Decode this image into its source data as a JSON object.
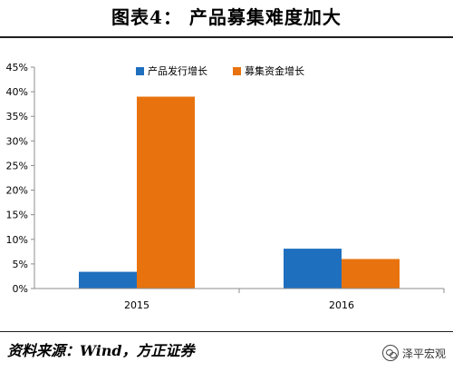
{
  "header": {
    "title": "图表4： 产品募集难度加大"
  },
  "footer": {
    "source": "资料来源：Wind，方正证券",
    "watermark": "泽平宏观"
  },
  "chart_data": {
    "type": "bar",
    "categories": [
      "2015",
      "2016"
    ],
    "series": [
      {
        "name": "产品发行增长",
        "values": [
          3.4,
          8.1
        ],
        "color": "#1f6fbf"
      },
      {
        "name": "募集资金增长",
        "values": [
          39.0,
          6.0
        ],
        "color": "#e8730e"
      }
    ],
    "ylim": [
      0,
      45
    ],
    "yticks": [
      0,
      5,
      10,
      15,
      20,
      25,
      30,
      35,
      40,
      45
    ],
    "ytick_format": "percent",
    "legend": "top-center",
    "grid": false
  }
}
